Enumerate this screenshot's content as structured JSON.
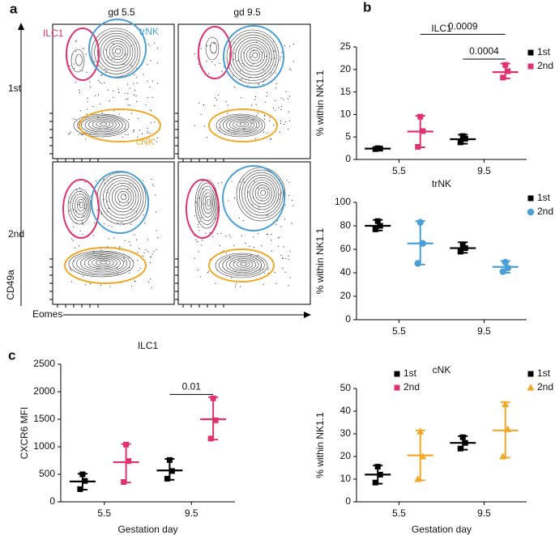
{
  "panel_labels": [
    "a",
    "b",
    "c"
  ],
  "flow_panel": {
    "columns": [
      "gd 5.5",
      "gd 9.5"
    ],
    "rows": [
      "1st",
      "2nd"
    ],
    "gates": [
      "ILC1",
      "trNK",
      "cNK"
    ],
    "y_axis": "CD49a",
    "x_axis": "Eomes"
  },
  "chart_data": [
    {
      "type": "dot",
      "title": "ILC1",
      "ylabel": "% within NK1.1",
      "categories": [
        "5.5",
        "9.5"
      ],
      "ylim": [
        0,
        25
      ],
      "yticks": [
        0,
        5,
        10,
        15,
        20,
        25
      ],
      "series": [
        {
          "name": "1st",
          "color": "#000000",
          "marker": "square",
          "mean": [
            2.4,
            4.5
          ],
          "low": [
            2.2,
            3.5
          ],
          "high": [
            2.6,
            5.5
          ],
          "points": [
            [
              2.3,
              2.4,
              2.5
            ],
            [
              3.8,
              4.6,
              5.2
            ]
          ]
        },
        {
          "name": "2nd",
          "color": "#e0336b",
          "marker": "square",
          "mean": [
            6.2,
            19.4
          ],
          "low": [
            2.7,
            18.0
          ],
          "high": [
            9.7,
            21.3
          ],
          "points": [
            [
              2.8,
              6.3,
              9.5
            ],
            [
              18.2,
              19.6,
              21.0
            ]
          ]
        }
      ],
      "annotations": [
        {
          "text": "0.0009",
          "y": 27.8
        },
        {
          "text": "0.0004",
          "y": 22.3
        }
      ]
    },
    {
      "type": "dot",
      "title": "trNK",
      "ylabel": "% within NK1.1",
      "categories": [
        "5.5",
        "9.5"
      ],
      "ylim": [
        0,
        100
      ],
      "yticks": [
        0,
        20,
        40,
        60,
        80,
        100
      ],
      "series": [
        {
          "name": "1st",
          "color": "#000000",
          "marker": "square",
          "mean": [
            80,
            61
          ],
          "low": [
            76,
            57
          ],
          "high": [
            85,
            66
          ],
          "points": [
            [
              77,
              80,
              84
            ],
            [
              58,
              61,
              64
            ]
          ]
        },
        {
          "name": "2nd",
          "color": "#4a9fd4",
          "marker": "circle",
          "mean": [
            65,
            45
          ],
          "low": [
            47,
            40
          ],
          "high": [
            84,
            50
          ],
          "points": [
            [
              48,
              65,
              83
            ],
            [
              41,
              44,
              49
            ]
          ]
        }
      ]
    },
    {
      "type": "dot",
      "title": "ILC1",
      "ylabel": "CXCR6 MFI",
      "xlabel": "Gestation day",
      "categories": [
        "5.5",
        "9.5"
      ],
      "ylim": [
        0,
        2500
      ],
      "yticks": [
        0,
        500,
        1000,
        1500,
        2000,
        2500
      ],
      "series": [
        {
          "name": "1st",
          "color": "#000000",
          "marker": "square",
          "mean": [
            370,
            570
          ],
          "low": [
            220,
            400
          ],
          "high": [
            510,
            780
          ],
          "points": [
            [
              230,
              380,
              500
            ],
            [
              420,
              560,
              760
            ]
          ]
        },
        {
          "name": "2nd",
          "color": "#e0336b",
          "marker": "square",
          "mean": [
            720,
            1500
          ],
          "low": [
            350,
            1130
          ],
          "high": [
            1050,
            1900
          ],
          "points": [
            [
              360,
              740,
              1040
            ],
            [
              1150,
              1480,
              1880
            ]
          ]
        }
      ],
      "annotations": [
        {
          "text": "0.01",
          "y": 1950
        }
      ]
    },
    {
      "type": "dot",
      "title": "cNK",
      "ylabel": "% within NK1.1",
      "xlabel": "Gestation day",
      "categories": [
        "5.5",
        "9.5"
      ],
      "ylim": [
        0,
        50
      ],
      "yticks": [
        0,
        10,
        20,
        30,
        40,
        50
      ],
      "series": [
        {
          "name": "1st",
          "color": "#000000",
          "marker": "square",
          "mean": [
            12,
            26
          ],
          "low": [
            8,
            23
          ],
          "high": [
            16,
            29
          ],
          "points": [
            [
              8.5,
              12,
              15.5
            ],
            [
              23.5,
              26,
              28.5
            ]
          ]
        },
        {
          "name": "2nd",
          "color": "#f0a928",
          "marker": "triangle",
          "mean": [
            20.5,
            31.5
          ],
          "low": [
            9.5,
            19.5
          ],
          "high": [
            31.5,
            44
          ],
          "points": [
            [
              10,
              20,
              31
            ],
            [
              20,
              32,
              43
            ]
          ]
        }
      ]
    }
  ]
}
